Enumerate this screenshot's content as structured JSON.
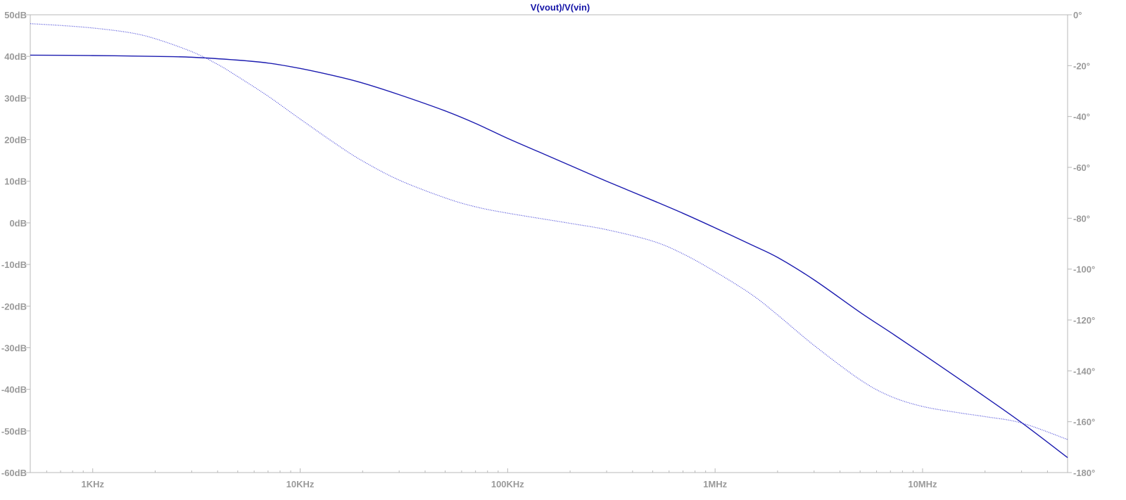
{
  "chart_data": {
    "type": "line",
    "title": "V(vout)/V(vin)",
    "x_scale": "log",
    "xlim_hz": [
      500,
      50000000
    ],
    "x_ticks": [
      {
        "value": 1000,
        "label": "1KHz"
      },
      {
        "value": 10000,
        "label": "10KHz"
      },
      {
        "value": 100000,
        "label": "100KHz"
      },
      {
        "value": 1000000,
        "label": "1MHz"
      },
      {
        "value": 10000000,
        "label": "10MHz"
      }
    ],
    "y_left": {
      "unit": "dB",
      "range": [
        -60,
        50
      ],
      "ticks": [
        {
          "value": 50,
          "label": "50dB"
        },
        {
          "value": 40,
          "label": "40dB"
        },
        {
          "value": 30,
          "label": "30dB"
        },
        {
          "value": 20,
          "label": "20dB"
        },
        {
          "value": 10,
          "label": "10dB"
        },
        {
          "value": 0,
          "label": "0dB"
        },
        {
          "value": -10,
          "label": "-10dB"
        },
        {
          "value": -20,
          "label": "-20dB"
        },
        {
          "value": -30,
          "label": "-30dB"
        },
        {
          "value": -40,
          "label": "-40dB"
        },
        {
          "value": -50,
          "label": "-50dB"
        },
        {
          "value": -60,
          "label": "-60dB"
        }
      ]
    },
    "y_right": {
      "unit": "degrees",
      "range": [
        -180,
        0
      ],
      "ticks": [
        {
          "value": 0,
          "label": "0°"
        },
        {
          "value": -20,
          "label": "-20°"
        },
        {
          "value": -40,
          "label": "-40°"
        },
        {
          "value": -60,
          "label": "-60°"
        },
        {
          "value": -80,
          "label": "-80°"
        },
        {
          "value": -100,
          "label": "-100°"
        },
        {
          "value": -120,
          "label": "-120°"
        },
        {
          "value": -140,
          "label": "-140°"
        },
        {
          "value": -160,
          "label": "-160°"
        },
        {
          "value": -180,
          "label": "-180°"
        }
      ]
    },
    "grid": false,
    "series": [
      {
        "axis": "left",
        "style": "solid",
        "color": "#1c1cb0",
        "points": [
          [
            500,
            40.3
          ],
          [
            1000,
            40.2
          ],
          [
            2000,
            40.0
          ],
          [
            3000,
            39.8
          ],
          [
            5000,
            39.1
          ],
          [
            7000,
            38.4
          ],
          [
            10000,
            37.1
          ],
          [
            15000,
            35.2
          ],
          [
            20000,
            33.6
          ],
          [
            30000,
            30.8
          ],
          [
            50000,
            26.9
          ],
          [
            70000,
            23.9
          ],
          [
            100000,
            20.3
          ],
          [
            150000,
            16.5
          ],
          [
            200000,
            13.8
          ],
          [
            300000,
            10.0
          ],
          [
            500000,
            5.4
          ],
          [
            700000,
            2.3
          ],
          [
            1000000,
            -1.2
          ],
          [
            1500000,
            -5.3
          ],
          [
            2000000,
            -8.3
          ],
          [
            3000000,
            -13.7
          ],
          [
            5000000,
            -21.5
          ],
          [
            7000000,
            -26.3
          ],
          [
            10000000,
            -31.5
          ],
          [
            15000000,
            -37.5
          ],
          [
            20000000,
            -41.8
          ],
          [
            30000000,
            -48.0
          ],
          [
            50000000,
            -56.4
          ]
        ]
      },
      {
        "axis": "right",
        "style": "dotted",
        "color": "#4a4ad8",
        "points": [
          [
            500,
            -3.5
          ],
          [
            700,
            -4.2
          ],
          [
            1000,
            -5.2
          ],
          [
            1500,
            -7.0
          ],
          [
            2000,
            -9.4
          ],
          [
            3000,
            -14.5
          ],
          [
            4000,
            -19.5
          ],
          [
            5000,
            -24.3
          ],
          [
            7000,
            -32.0
          ],
          [
            10000,
            -41.0
          ],
          [
            15000,
            -51.0
          ],
          [
            20000,
            -57.5
          ],
          [
            30000,
            -65.0
          ],
          [
            50000,
            -72.0
          ],
          [
            70000,
            -75.5
          ],
          [
            100000,
            -78.0
          ],
          [
            200000,
            -82.0
          ],
          [
            300000,
            -84.5
          ],
          [
            500000,
            -89.0
          ],
          [
            700000,
            -94.0
          ],
          [
            1000000,
            -101.0
          ],
          [
            1500000,
            -110.0
          ],
          [
            2000000,
            -118.0
          ],
          [
            3000000,
            -130.0
          ],
          [
            5000000,
            -143.5
          ],
          [
            7000000,
            -150.0
          ],
          [
            10000000,
            -154.0
          ],
          [
            15000000,
            -156.5
          ],
          [
            20000000,
            -158.0
          ],
          [
            30000000,
            -160.5
          ],
          [
            50000000,
            -167.0
          ]
        ]
      }
    ]
  }
}
